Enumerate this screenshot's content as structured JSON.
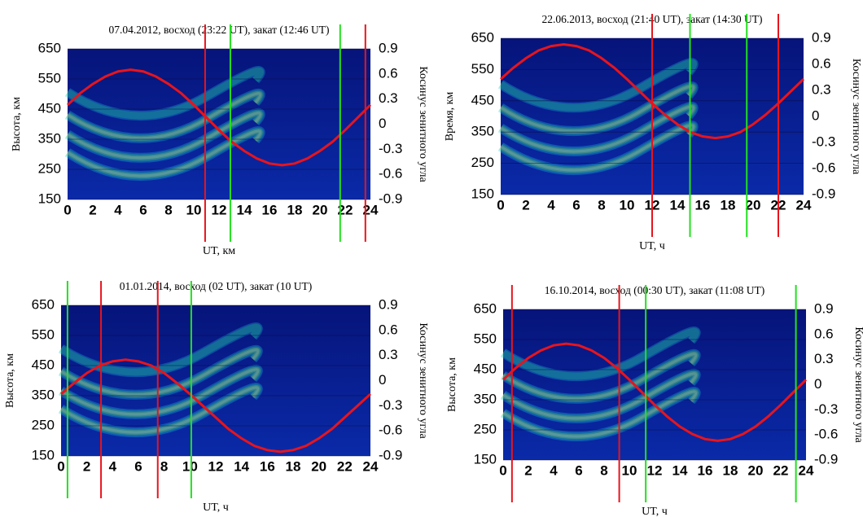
{
  "chart_data": [
    {
      "type": "line",
      "title": "07.04.2012, восход (23:22 UT), закат (12:46 UT)",
      "y_label": "Высота, км",
      "y2_label": "Косинус зенитного угла",
      "x_label": "UT, км",
      "x": [
        0,
        1,
        2,
        3,
        4,
        5,
        6,
        7,
        8,
        9,
        10,
        11,
        12,
        13,
        14,
        15,
        16,
        17,
        18,
        19,
        20,
        21,
        22,
        23,
        24
      ],
      "series": [
        {
          "color": "#e8141c",
          "axis": "y2",
          "values": [
            0.23,
            0.37,
            0.48,
            0.57,
            0.63,
            0.65,
            0.63,
            0.57,
            0.48,
            0.37,
            0.23,
            0.08,
            -0.07,
            -0.21,
            -0.32,
            -0.41,
            -0.47,
            -0.49,
            -0.47,
            -0.41,
            -0.32,
            -0.21,
            -0.07,
            0.08,
            0.23
          ]
        }
      ],
      "vlines": [
        {
          "x": 10.9,
          "color": "#e8141c"
        },
        {
          "x": 23.6,
          "color": "#e8141c"
        },
        {
          "x": 12.9,
          "color": "#22e01e"
        },
        {
          "x": 21.6,
          "color": "#22e01e"
        }
      ],
      "xlim": [
        0,
        24
      ],
      "xticks": [
        0,
        2,
        4,
        6,
        8,
        10,
        12,
        14,
        16,
        18,
        20,
        22,
        24
      ],
      "ylim": [
        150,
        650
      ],
      "yticks": [
        150,
        250,
        350,
        450,
        550,
        650
      ],
      "y2lim": [
        -0.9,
        0.9
      ],
      "y2ticks": [
        -0.9,
        -0.6,
        -0.3,
        0,
        0.3,
        0.6,
        0.9
      ],
      "grid": true
    },
    {
      "type": "line",
      "title": "22.06.2013, восход (21:40 UT), закат (14:30 UT)",
      "y_label": "Время, км",
      "y2_label": "Косинус зенитного угла",
      "x_label": "UT, ч",
      "x": [
        0,
        1,
        2,
        3,
        4,
        5,
        6,
        7,
        8,
        9,
        10,
        11,
        12,
        13,
        14,
        15,
        16,
        17,
        18,
        19,
        20,
        21,
        22,
        23,
        24
      ],
      "series": [
        {
          "color": "#e8141c",
          "axis": "y2",
          "values": [
            0.43,
            0.56,
            0.67,
            0.76,
            0.81,
            0.83,
            0.81,
            0.76,
            0.67,
            0.56,
            0.43,
            0.29,
            0.15,
            0.02,
            -0.09,
            -0.18,
            -0.23,
            -0.25,
            -0.23,
            -0.18,
            -0.09,
            0.02,
            0.15,
            0.29,
            0.43
          ]
        }
      ],
      "vlines": [
        {
          "x": 12,
          "color": "#e8141c"
        },
        {
          "x": 22,
          "color": "#e8141c"
        },
        {
          "x": 15,
          "color": "#22e01e"
        },
        {
          "x": 19.5,
          "color": "#22e01e"
        }
      ],
      "xlim": [
        0,
        24
      ],
      "xticks": [
        0,
        2,
        4,
        6,
        8,
        10,
        12,
        14,
        16,
        18,
        20,
        22,
        24
      ],
      "ylim": [
        150,
        650
      ],
      "yticks": [
        150,
        250,
        350,
        450,
        550,
        650
      ],
      "y2lim": [
        -0.9,
        0.9
      ],
      "y2ticks": [
        -0.9,
        -0.6,
        -0.3,
        0,
        0.3,
        0.6,
        0.9
      ],
      "grid": true
    },
    {
      "type": "line",
      "title": "01.01.2014, восход (02 UT), закат (10 UT)",
      "y_label": "Высота, км",
      "y2_label": "Косинус зенитного угла",
      "x_label": "UT, ч",
      "x": [
        0,
        1,
        2,
        3,
        4,
        5,
        6,
        7,
        8,
        9,
        10,
        11,
        12,
        13,
        14,
        15,
        16,
        17,
        18,
        19,
        20,
        21,
        22,
        23,
        24
      ],
      "series": [
        {
          "color": "#e8141c",
          "axis": "y2",
          "values": [
            -0.16,
            -0.03,
            0.09,
            0.18,
            0.23,
            0.25,
            0.23,
            0.18,
            0.09,
            -0.03,
            -0.16,
            -0.3,
            -0.44,
            -0.58,
            -0.69,
            -0.78,
            -0.83,
            -0.85,
            -0.83,
            -0.78,
            -0.69,
            -0.58,
            -0.44,
            -0.3,
            -0.16
          ]
        }
      ],
      "vlines": [
        {
          "x": 3.1,
          "color": "#e8141c"
        },
        {
          "x": 7.5,
          "color": "#e8141c"
        },
        {
          "x": 0.5,
          "color": "#22e01e"
        },
        {
          "x": 10.1,
          "color": "#22e01e"
        }
      ],
      "xlim": [
        0,
        24
      ],
      "xticks": [
        0,
        2,
        4,
        6,
        8,
        10,
        12,
        14,
        16,
        18,
        20,
        22,
        24
      ],
      "ylim": [
        150,
        650
      ],
      "yticks": [
        150,
        250,
        350,
        450,
        550,
        650
      ],
      "y2lim": [
        -0.9,
        0.9
      ],
      "y2ticks": [
        -0.9,
        -0.6,
        -0.3,
        0,
        0.3,
        0.6,
        0.9
      ],
      "grid": true
    },
    {
      "type": "line",
      "title": "16.10.2014, восход (00:30 UT), закат (11:08 UT)",
      "y_label": "Высота, км",
      "y2_label": "Косинус зенитного угла",
      "x_label": "UT, ч",
      "x": [
        0,
        1,
        2,
        3,
        4,
        5,
        6,
        7,
        8,
        9,
        10,
        11,
        12,
        13,
        14,
        15,
        16,
        17,
        18,
        19,
        20,
        21,
        22,
        23,
        24
      ],
      "series": [
        {
          "color": "#e8141c",
          "axis": "y2",
          "values": [
            0.06,
            0.2,
            0.32,
            0.41,
            0.47,
            0.49,
            0.47,
            0.41,
            0.32,
            0.2,
            0.06,
            -0.09,
            -0.24,
            -0.38,
            -0.5,
            -0.59,
            -0.65,
            -0.67,
            -0.65,
            -0.59,
            -0.5,
            -0.38,
            -0.24,
            -0.09,
            0.06
          ]
        }
      ],
      "vlines": [
        {
          "x": 0.7,
          "color": "#e8141c"
        },
        {
          "x": 9.2,
          "color": "#e8141c"
        },
        {
          "x": 11.3,
          "color": "#22e01e"
        },
        {
          "x": 23.2,
          "color": "#22e01e"
        }
      ],
      "xlim": [
        0,
        24
      ],
      "xticks": [
        0,
        2,
        4,
        6,
        8,
        10,
        12,
        14,
        16,
        18,
        20,
        22,
        24
      ],
      "ylim": [
        150,
        650
      ],
      "yticks": [
        150,
        250,
        350,
        450,
        550,
        650
      ],
      "y2lim": [
        -0.9,
        0.9
      ],
      "y2ticks": [
        -0.9,
        -0.6,
        -0.3,
        0,
        0.3,
        0.6,
        0.9
      ],
      "grid": true
    }
  ]
}
